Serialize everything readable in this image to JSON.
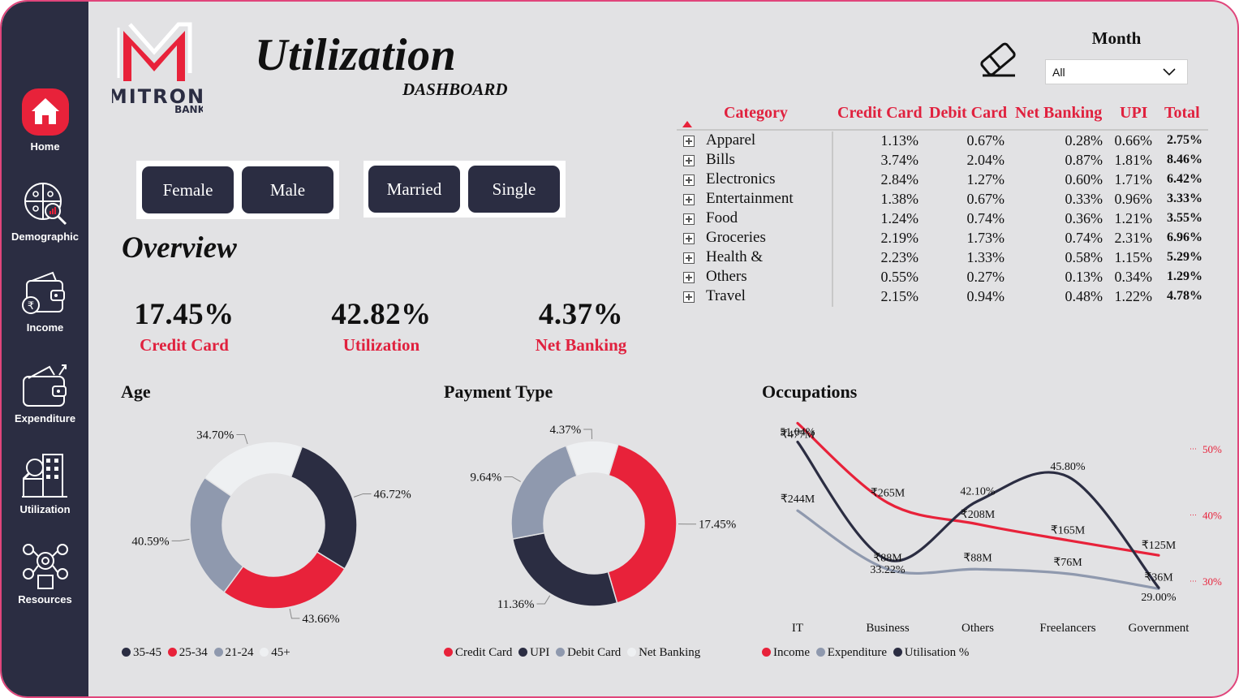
{
  "colors": {
    "dark": "#2b2d42",
    "red": "#e8223a",
    "steel": "#8f99ae",
    "light": "#eef0f2"
  },
  "sidebar": {
    "items": [
      {
        "label": "Home",
        "icon": "home-icon"
      },
      {
        "label": "Demographic",
        "icon": "demographic-icon"
      },
      {
        "label": "Income",
        "icon": "wallet-rupee-icon"
      },
      {
        "label": "Expenditure",
        "icon": "wallet-arrow-icon"
      },
      {
        "label": "Utilization",
        "icon": "building-search-icon"
      },
      {
        "label": "Resources",
        "icon": "resources-icon"
      }
    ]
  },
  "header": {
    "logo_text": "MITRON",
    "logo_sub": "BANK",
    "title": "Utilization",
    "subtitle": "DASHBOARD",
    "month_label": "Month",
    "month_value": "All"
  },
  "filters": {
    "gender": [
      "Female",
      "Male"
    ],
    "marital": [
      "Married",
      "Single"
    ]
  },
  "overview": {
    "title": "Overview",
    "kpis": [
      {
        "value": "17.45%",
        "label": "Credit Card"
      },
      {
        "value": "42.82%",
        "label": "Utilization"
      },
      {
        "value": "4.37%",
        "label": "Net Banking"
      }
    ]
  },
  "table": {
    "headers": [
      "Category",
      "Credit Card",
      "Debit Card",
      "Net Banking",
      "UPI",
      "Total"
    ],
    "rows": [
      [
        "Apparel",
        "1.13%",
        "0.67%",
        "0.28%",
        "0.66%",
        "2.75%"
      ],
      [
        "Bills",
        "3.74%",
        "2.04%",
        "0.87%",
        "1.81%",
        "8.46%"
      ],
      [
        "Electronics",
        "2.84%",
        "1.27%",
        "0.60%",
        "1.71%",
        "6.42%"
      ],
      [
        "Entertainment",
        "1.38%",
        "0.67%",
        "0.33%",
        "0.96%",
        "3.33%"
      ],
      [
        "Food",
        "1.24%",
        "0.74%",
        "0.36%",
        "1.21%",
        "3.55%"
      ],
      [
        "Groceries",
        "2.19%",
        "1.73%",
        "0.74%",
        "2.31%",
        "6.96%"
      ],
      [
        "Health &",
        "2.23%",
        "1.33%",
        "0.58%",
        "1.15%",
        "5.29%"
      ],
      [
        "Others",
        "0.55%",
        "0.27%",
        "0.13%",
        "0.34%",
        "1.29%"
      ],
      [
        "Travel",
        "2.15%",
        "0.94%",
        "0.48%",
        "1.22%",
        "4.78%"
      ]
    ]
  },
  "chart_data": [
    {
      "type": "pie",
      "title": "Age",
      "donut": true,
      "slices": [
        {
          "name": "35-45",
          "value": 46.72,
          "label": "46.72%",
          "color": "#2b2d42"
        },
        {
          "name": "25-34",
          "value": 43.66,
          "label": "43.66%",
          "color": "#e8223a"
        },
        {
          "name": "21-24",
          "value": 40.59,
          "label": "40.59%",
          "color": "#8f99ae"
        },
        {
          "name": "45+",
          "value": 34.7,
          "label": "34.70%",
          "color": "#eef0f2"
        }
      ],
      "legend": [
        "35-45",
        "25-34",
        "21-24",
        "45+"
      ],
      "legend_position": "bottom-left"
    },
    {
      "type": "pie",
      "title": "Payment Type",
      "donut": true,
      "slices": [
        {
          "name": "Credit Card",
          "value": 17.45,
          "label": "17.45%",
          "color": "#e8223a"
        },
        {
          "name": "UPI",
          "value": 11.36,
          "label": "11.36%",
          "color": "#2b2d42"
        },
        {
          "name": "Debit Card",
          "value": 9.64,
          "label": "9.64%",
          "color": "#8f99ae"
        },
        {
          "name": "Net Banking",
          "value": 4.37,
          "label": "4.37%",
          "color": "#eef0f2"
        }
      ],
      "legend": [
        "Credit Card",
        "UPI",
        "Debit Card",
        "Net Banking"
      ],
      "legend_position": "bottom-left"
    },
    {
      "type": "line",
      "title": "Occupations",
      "categories": [
        "IT",
        "Business",
        "Others",
        "Freelancers",
        "Government"
      ],
      "series": [
        {
          "name": "Income",
          "values": [
            477,
            265,
            208,
            165,
            125
          ],
          "labels": [
            "₹477M",
            "₹265M",
            "₹208M",
            "₹165M",
            "₹125M"
          ],
          "color": "#e8223a",
          "axis": "left"
        },
        {
          "name": "Expenditure",
          "values": [
            244,
            88,
            88,
            76,
            36
          ],
          "labels": [
            "₹244M",
            "₹88M",
            "₹88M",
            "₹76M",
            "₹36M"
          ],
          "color": "#8f99ae",
          "axis": "left"
        },
        {
          "name": "Utilisation %",
          "values": [
            51.04,
            33.22,
            42.1,
            45.8,
            29.0
          ],
          "labels": [
            "51.04%",
            "33.22%",
            "42.10%",
            "45.80%",
            "29.00%"
          ],
          "color": "#2b2d42",
          "axis": "right"
        }
      ],
      "y2_ticks": [
        "50%",
        "40%",
        "30%"
      ],
      "y2_tick_values": [
        50,
        40,
        30
      ],
      "legend": [
        "Income",
        "Expenditure",
        "Utilisation %"
      ],
      "legend_position": "bottom-left"
    }
  ]
}
